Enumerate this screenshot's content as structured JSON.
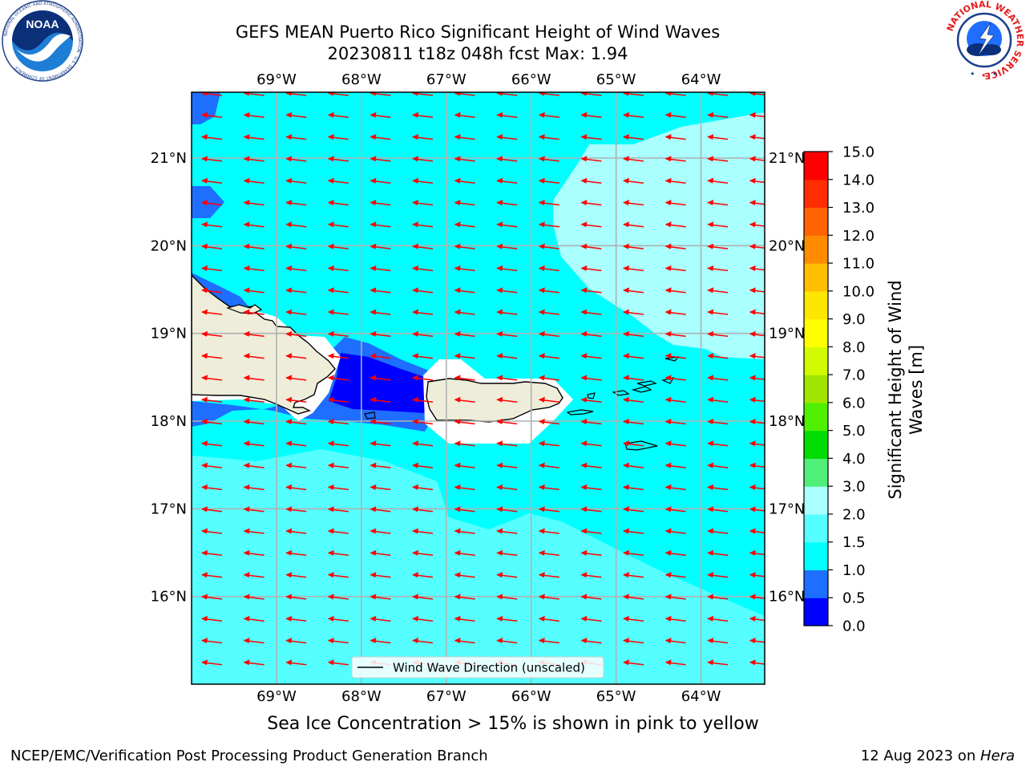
{
  "title": {
    "line1": "GEFS MEAN Puerto Rico Significant Height of Wind Waves",
    "line2": "20230811 t18z 048h fcst   Max: 1.94"
  },
  "logos": {
    "noaa": {
      "text": "NOAA",
      "ring_text": "NATIONAL OCEANIC AND ATMOSPHERIC ADMINISTRATION · U.S. DEPARTMENT OF COMMERCE",
      "icon": "noaa-logo"
    },
    "nws": {
      "ring_text": "NATIONAL WEATHER SERVICE",
      "icon": "nws-logo"
    }
  },
  "map": {
    "lon_labels_top": [
      "69°W",
      "68°W",
      "67°W",
      "66°W",
      "65°W",
      "64°W"
    ],
    "lon_labels_bottom": [
      "69°W",
      "68°W",
      "67°W",
      "66°W",
      "65°W",
      "64°W"
    ],
    "lat_labels_left": [
      "21°N",
      "20°N",
      "19°N",
      "18°N",
      "17°N",
      "16°N"
    ],
    "lat_labels_right": [
      "21°N",
      "20°N",
      "19°N",
      "18°N",
      "17°N",
      "16°N"
    ],
    "lon_range": [
      -70.0,
      -63.25
    ],
    "lat_range": [
      15.0,
      21.75
    ],
    "grid": true,
    "arrow_color": "#ff0000",
    "land_color": "#eeedda",
    "legend": {
      "label": "Wind Wave Direction (unscaled)",
      "placement": "bottom-center"
    }
  },
  "colorbar": {
    "label": "Significant Height of Wind Waves [m]",
    "label_lines": [
      "Significant Height of Wind",
      "Waves [m]"
    ],
    "ticks": [
      "15.0",
      "14.0",
      "13.0",
      "12.0",
      "11.0",
      "10.0",
      "9.0",
      "8.0",
      "7.0",
      "6.0",
      "5.0",
      "4.0",
      "3.0",
      "2.0",
      "1.5",
      "1.0",
      "0.5",
      "0.0"
    ],
    "levels": [
      0.0,
      0.5,
      1.0,
      1.5,
      2.0,
      3.0,
      4.0,
      5.0,
      6.0,
      7.0,
      8.0,
      9.0,
      10.0,
      11.0,
      12.0,
      13.0,
      14.0,
      15.0
    ],
    "colors": [
      "#0000ff",
      "#1e6eff",
      "#00ffff",
      "#55ffff",
      "#aaffff",
      "#50f078",
      "#00dc00",
      "#50f000",
      "#a0e600",
      "#d2fa00",
      "#ffff00",
      "#ffe600",
      "#ffbe00",
      "#ff8c00",
      "#ff6400",
      "#ff2d00",
      "#ff0000"
    ]
  },
  "chart_data": {
    "type": "heatmap",
    "variable": "Significant Height of Wind Waves",
    "units": "m",
    "max": 1.94,
    "wave_direction": "westward",
    "regions": [
      {
        "area": "open sea (most of domain)",
        "range_m": [
          1.0,
          1.5
        ]
      },
      {
        "area": "northeast and south-central sea",
        "range_m": [
          1.5,
          2.0
        ]
      },
      {
        "area": "Mona Passage",
        "range_m": [
          0.0,
          0.5
        ]
      },
      {
        "area": "lee of Hispaniola and northwest corner",
        "range_m": [
          0.5,
          1.0
        ]
      }
    ]
  },
  "footnote": "Sea Ice Concentration > 15% is shown in pink to yellow",
  "footer": {
    "left": "NCEP/EMC/Verification Post Processing Product Generation Branch",
    "right_prefix": "12 Aug 2023 on ",
    "right_system": "Hera"
  }
}
